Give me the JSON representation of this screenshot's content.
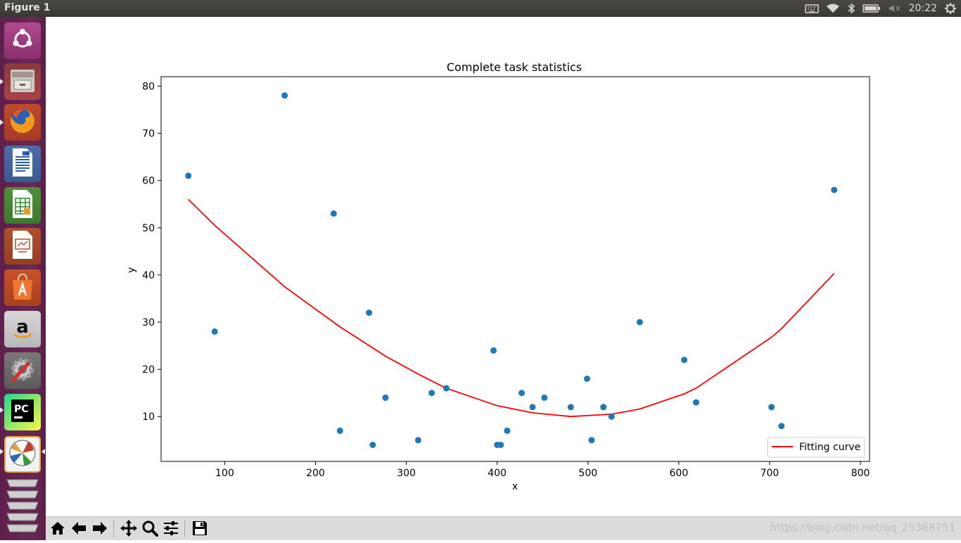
{
  "window": {
    "title": "Figure 1"
  },
  "tray": {
    "clock": "20:22",
    "icons": [
      "keyboard-icon",
      "wifi-icon",
      "bluetooth-icon",
      "battery-icon",
      "volume-muted-icon",
      "gear-icon"
    ]
  },
  "launcher": {
    "items": [
      "ubuntu-dash",
      "files",
      "firefox",
      "libreoffice-writer",
      "libreoffice-calc",
      "libreoffice-impress",
      "ubuntu-software",
      "amazon",
      "system-settings",
      "pycharm",
      "matplotlib-figure",
      "workspaces"
    ]
  },
  "toolbar": {
    "buttons": [
      "home",
      "back",
      "forward",
      "pan",
      "zoom",
      "configure-subplots",
      "save"
    ],
    "watermark": "https://blog.csdn.net/qq_25368751"
  },
  "chart_data": {
    "type": "scatter",
    "title": "Complete task statistics",
    "xlabel": "x",
    "ylabel": "y",
    "xlim": [
      30,
      810
    ],
    "ylim": [
      0.5,
      82
    ],
    "xticks": [
      100,
      200,
      300,
      400,
      500,
      600,
      700,
      800
    ],
    "yticks": [
      10,
      20,
      30,
      40,
      50,
      60,
      70,
      80
    ],
    "grid": false,
    "legend": "lower-right",
    "colors": {
      "points": "#1f77b4",
      "curve": "#ff0000"
    },
    "series": [
      {
        "type": "scatter",
        "points": [
          [
            60,
            61
          ],
          [
            89,
            28
          ],
          [
            166,
            78
          ],
          [
            220,
            53
          ],
          [
            227,
            7
          ],
          [
            259,
            32
          ],
          [
            263,
            4
          ],
          [
            277,
            14
          ],
          [
            313,
            5
          ],
          [
            328,
            15
          ],
          [
            344,
            16
          ],
          [
            396,
            24
          ],
          [
            400,
            4
          ],
          [
            404,
            4
          ],
          [
            411,
            7
          ],
          [
            427,
            15
          ],
          [
            439,
            12
          ],
          [
            452,
            14
          ],
          [
            481,
            12
          ],
          [
            499,
            18
          ],
          [
            504,
            5
          ],
          [
            517,
            12
          ],
          [
            526,
            10
          ],
          [
            557,
            30
          ],
          [
            606,
            22
          ],
          [
            619,
            13
          ],
          [
            702,
            12
          ],
          [
            713,
            8
          ],
          [
            771,
            58
          ]
        ]
      },
      {
        "type": "line",
        "name": "Fitting curve",
        "points": [
          [
            60,
            56
          ],
          [
            89,
            50.5
          ],
          [
            166,
            37.5
          ],
          [
            227,
            29
          ],
          [
            277,
            22.8
          ],
          [
            313,
            19
          ],
          [
            344,
            16
          ],
          [
            400,
            12.3
          ],
          [
            439,
            10.8
          ],
          [
            481,
            10
          ],
          [
            526,
            10.5
          ],
          [
            557,
            11.6
          ],
          [
            606,
            14.8
          ],
          [
            619,
            16
          ],
          [
            702,
            26.8
          ],
          [
            713,
            28.6
          ],
          [
            771,
            40.3
          ]
        ]
      }
    ]
  }
}
